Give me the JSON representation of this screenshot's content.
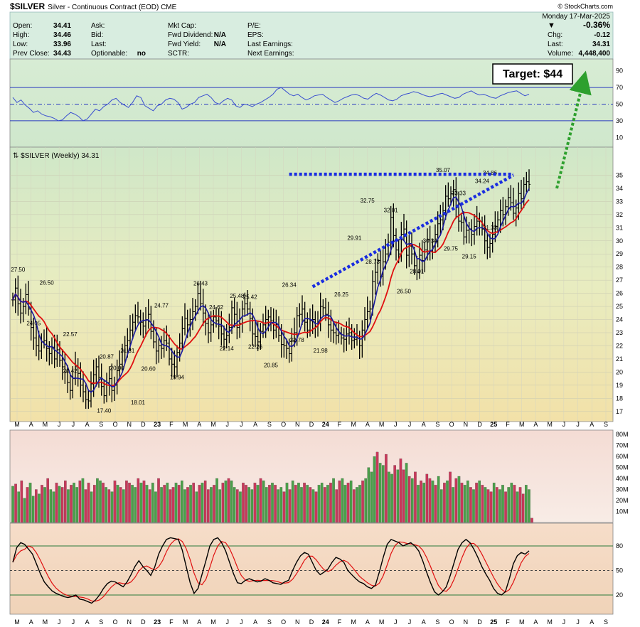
{
  "header": {
    "symbol": "$SILVER",
    "description": "Silver - Continuous Contract (EOD)  CME",
    "watermark": "© StockCharts.com",
    "date": "Monday  17-Mar-2025",
    "change_pct": "-0.36%",
    "change_arrow": "▼"
  },
  "quote": {
    "col1": [
      [
        "Open:",
        "34.41"
      ],
      [
        "High:",
        "34.46"
      ],
      [
        "Low:",
        "33.96"
      ],
      [
        "Prev Close:",
        "34.43"
      ]
    ],
    "col2": [
      [
        "Ask:",
        ""
      ],
      [
        "Bid:",
        ""
      ],
      [
        "Last:",
        ""
      ],
      [
        "Optionable:",
        "no"
      ]
    ],
    "col3": [
      [
        "Mkt Cap:",
        ""
      ],
      [
        "Fwd Dividend:",
        "N/A"
      ],
      [
        "Fwd Yield:",
        "N/A"
      ],
      [
        "SCTR:",
        ""
      ]
    ],
    "col4": [
      [
        "P/E:",
        ""
      ],
      [
        "EPS:",
        ""
      ],
      [
        "Last Earnings:",
        ""
      ],
      [
        "Next Earnings:",
        ""
      ]
    ],
    "col5": [
      [
        "Chg:",
        "-0.12"
      ],
      [
        "Last:",
        "34.31"
      ],
      [
        "Volume:",
        "4,448,400"
      ]
    ]
  },
  "price_legend": "⇅ $SILVER (Weekly) 34.31",
  "annotations": {
    "target": "Target: $44"
  },
  "colors": {
    "up_volume": "#4aa04a",
    "down_volume": "#c8385a",
    "price_bar": "#000000",
    "ma_fast": "#1a1aa0",
    "ma_slow": "#e01010",
    "trendline": "#1a2de0",
    "target_arrow": "#2ea02e",
    "rsi_line": "#3a4fd0",
    "stoch_k": "#000000",
    "stoch_d": "#e01010"
  },
  "chart_data": [
    {
      "type": "ohlc",
      "title": "$SILVER (Weekly) 34.31",
      "series_name": "$SILVER weekly",
      "x_months": [
        "M",
        "A",
        "M",
        "J",
        "J",
        "A",
        "S",
        "O",
        "N",
        "D",
        "23",
        "F",
        "M",
        "A",
        "M",
        "J",
        "J",
        "A",
        "S",
        "O",
        "N",
        "D",
        "24",
        "F",
        "M",
        "A",
        "M",
        "J",
        "J",
        "A",
        "S",
        "O",
        "N",
        "D",
        "25",
        "F",
        "M",
        "A",
        "M",
        "J",
        "J",
        "A",
        "S"
      ],
      "y_ticks": [
        17,
        18,
        19,
        20,
        21,
        22,
        23,
        24,
        25,
        26,
        27,
        28,
        29,
        30,
        31,
        32,
        33,
        34,
        35
      ],
      "ylim": [
        16.5,
        36.0
      ],
      "grid": true,
      "weekly_close": [
        25.5,
        26.4,
        25.2,
        24.5,
        25.0,
        25.9,
        24.8,
        23.4,
        22.6,
        22.0,
        21.6,
        22.3,
        22.4,
        21.8,
        21.4,
        21.9,
        21.0,
        21.7,
        20.9,
        20.4,
        20.0,
        19.2,
        18.6,
        19.5,
        20.4,
        19.9,
        19.0,
        18.5,
        17.9,
        17.8,
        19.1,
        19.8,
        20.4,
        19.6,
        18.9,
        18.2,
        19.2,
        19.5,
        18.6,
        19.0,
        20.1,
        20.6,
        21.6,
        22.0,
        22.4,
        23.2,
        23.8,
        24.3,
        24.2,
        23.8,
        23.5,
        24.0,
        24.4,
        23.1,
        22.3,
        21.6,
        22.0,
        21.8,
        22.4,
        22.2,
        21.0,
        20.6,
        20.4,
        21.5,
        22.2,
        23.3,
        24.1,
        23.6,
        24.0,
        24.6,
        25.0,
        26.0,
        25.2,
        24.5,
        23.7,
        23.0,
        23.6,
        24.2,
        23.9,
        23.5,
        22.9,
        22.5,
        22.8,
        23.4,
        24.9,
        24.4,
        23.4,
        23.7,
        24.8,
        25.2,
        24.8,
        24.1,
        22.9,
        22.7,
        22.3,
        23.1,
        23.6,
        24.0,
        24.2,
        23.9,
        23.2,
        23.6,
        22.8,
        22.1,
        22.0,
        21.8,
        21.4,
        22.4,
        23.0,
        24.3,
        24.4,
        24.8,
        23.8,
        23.2,
        23.9,
        24.0,
        23.5,
        23.8,
        25.0,
        24.9,
        24.4,
        23.6,
        23.2,
        23.0,
        22.8,
        22.9,
        22.6,
        22.5,
        22.9,
        23.0,
        22.4,
        22.5,
        22.6,
        22.0,
        23.2,
        24.0,
        24.6,
        24.8,
        26.9,
        27.6,
        28.5,
        27.3,
        28.4,
        29.0,
        29.9,
        31.8,
        30.4,
        29.3,
        29.0,
        30.5,
        30.9,
        28.9,
        29.6,
        29.0,
        28.1,
        27.6,
        28.9,
        28.5,
        29.3,
        30.1,
        29.2,
        29.6,
        30.5,
        31.3,
        31.6,
        32.3,
        33.4,
        33.2,
        33.6,
        33.9,
        32.6,
        31.5,
        31.4,
        30.3,
        30.8,
        30.9,
        30.5,
        31.1,
        31.5,
        31.0,
        30.9,
        30.0,
        29.5,
        29.8,
        30.5,
        31.1,
        31.6,
        32.3,
        32.0,
        32.6,
        33.3,
        32.9,
        32.1,
        32.5,
        33.6,
        33.2,
        34.3,
        34.5,
        34.3
      ],
      "labels": [
        {
          "text": "27.50"
        },
        {
          "text": "24.05"
        },
        {
          "text": "26.50"
        },
        {
          "text": "22.57"
        },
        {
          "text": "20.42"
        },
        {
          "text": "20.87"
        },
        {
          "text": "17.40"
        },
        {
          "text": "20.00"
        },
        {
          "text": "21.31"
        },
        {
          "text": "18.01"
        },
        {
          "text": "20.60"
        },
        {
          "text": "24.77"
        },
        {
          "text": "19.94"
        },
        {
          "text": "26.43"
        },
        {
          "text": "24.62"
        },
        {
          "text": "22.14"
        },
        {
          "text": "25.48"
        },
        {
          "text": "25.42"
        },
        {
          "text": "22.26"
        },
        {
          "text": "20.85"
        },
        {
          "text": "26.34"
        },
        {
          "text": "22.78"
        },
        {
          "text": "21.98"
        },
        {
          "text": "26.25"
        },
        {
          "text": "29.91"
        },
        {
          "text": "32.75"
        },
        {
          "text": "28.73"
        },
        {
          "text": "32.01"
        },
        {
          "text": "26.50"
        },
        {
          "text": "28.01"
        },
        {
          "text": "30.34"
        },
        {
          "text": "35.07"
        },
        {
          "text": "29.75"
        },
        {
          "text": "33.33"
        },
        {
          "text": "29.15"
        },
        {
          "text": "34.24"
        },
        {
          "text": "34.86"
        },
        {
          "text": "31.33"
        }
      ],
      "moving_averages": [
        {
          "name": "fast"
        },
        {
          "name": "slow"
        }
      ],
      "trendlines": [
        {
          "kind": "resistance",
          "from": {
            "week": 106,
            "price": 35.07
          },
          "to": {
            "week": 192,
            "price": 35.07
          }
        },
        {
          "kind": "support",
          "from": {
            "week": 115,
            "price": 26.5
          },
          "to": {
            "week": 192,
            "price": 35.0
          }
        }
      ],
      "target": 44
    },
    {
      "type": "line",
      "title": "RSI",
      "y_ticks": [
        10,
        30,
        50,
        70,
        90
      ],
      "ylim": [
        0,
        100
      ],
      "reference_lines": [
        30,
        50,
        70
      ],
      "values": [
        58,
        52,
        55,
        49,
        45,
        40,
        42,
        38,
        36,
        35,
        33,
        30,
        31,
        36,
        40,
        38,
        35,
        30,
        32,
        38,
        44,
        42,
        47,
        50,
        55,
        57,
        52,
        49,
        46,
        52,
        60,
        58,
        48,
        45,
        42,
        48,
        50,
        55,
        57,
        56,
        52,
        44,
        46,
        50,
        52,
        58,
        60,
        62,
        58,
        52,
        50,
        54,
        57,
        55,
        48,
        46,
        50,
        49,
        47,
        50,
        52,
        55,
        58,
        62,
        68,
        70,
        66,
        62,
        60,
        62,
        58,
        55,
        57,
        60,
        61,
        62,
        58,
        55,
        52,
        54,
        57,
        59,
        61,
        62,
        60,
        57,
        56,
        60,
        63,
        61,
        58,
        55,
        54,
        56,
        60,
        62,
        63,
        65,
        64,
        62,
        60,
        59,
        60,
        62,
        63,
        61,
        59,
        57,
        58,
        62,
        64,
        66,
        63,
        61,
        62,
        60,
        58,
        57,
        60,
        62,
        64,
        65,
        66,
        63,
        60,
        62
      ]
    },
    {
      "type": "bar",
      "title": "Volume",
      "y_ticks_labels": [
        "10M",
        "20M",
        "30M",
        "40M",
        "50M",
        "60M",
        "70M",
        "80M"
      ],
      "ylim": [
        0,
        82
      ],
      "values": [
        33,
        35,
        28,
        38,
        22,
        32,
        36,
        24,
        30,
        26,
        34,
        32,
        40,
        30,
        28,
        36,
        33,
        32,
        38,
        30,
        34,
        36,
        32,
        38,
        40,
        30,
        36,
        28,
        34,
        40,
        38,
        36,
        32,
        30,
        28,
        38,
        34,
        32,
        30,
        38,
        36,
        34,
        32,
        40,
        36,
        38,
        34,
        30,
        36,
        28,
        40,
        32,
        34,
        36,
        30,
        32,
        36,
        34,
        38,
        30,
        32,
        34,
        36,
        28,
        34,
        36,
        38,
        30,
        32,
        34,
        40,
        30,
        36,
        38,
        40,
        38,
        32,
        30,
        28,
        36,
        34,
        32,
        30,
        36,
        34,
        40,
        38,
        32,
        34,
        36,
        34,
        30,
        32,
        28,
        36,
        30,
        38,
        34,
        36,
        32,
        36,
        34,
        32,
        30,
        28,
        34,
        36,
        32,
        34,
        36,
        40,
        30,
        38,
        40,
        34,
        36,
        38,
        30,
        32,
        34,
        38,
        40,
        50,
        46,
        60,
        64,
        54,
        52,
        62,
        46,
        44,
        52,
        48,
        58,
        48,
        54,
        42,
        40,
        46,
        34,
        38,
        36,
        44,
        40,
        38,
        34,
        42,
        30,
        36,
        38,
        46,
        32,
        40,
        42,
        36,
        34,
        38,
        32,
        30,
        36,
        38,
        34,
        32,
        30,
        28,
        36,
        32,
        30,
        34,
        28,
        32,
        36,
        34,
        28,
        32,
        26,
        34,
        30,
        4
      ],
      "up": [
        1,
        0,
        1,
        0,
        1,
        0,
        1,
        1,
        0,
        1,
        0,
        1,
        0,
        1,
        1,
        0,
        1,
        0,
        0,
        1,
        0,
        1,
        1,
        0,
        1,
        0,
        0,
        1,
        0,
        1,
        1,
        0,
        1,
        0,
        1,
        0,
        1,
        0,
        1,
        0,
        0,
        1,
        1,
        0,
        1,
        0,
        1,
        0,
        1,
        1,
        0,
        1,
        0,
        1,
        0,
        0,
        1,
        0,
        1,
        1,
        0,
        1,
        0,
        1,
        0,
        1,
        0,
        0,
        1,
        0,
        1,
        1,
        0,
        1,
        0,
        1,
        1,
        0,
        1,
        0,
        0,
        1,
        1,
        0,
        1,
        0,
        1,
        1,
        0,
        1,
        0,
        1,
        1,
        0,
        1,
        0,
        1,
        0,
        1,
        1,
        0,
        1,
        0,
        1,
        0,
        1,
        1,
        0,
        1,
        0,
        1,
        0,
        0,
        1,
        1,
        0,
        1,
        0,
        1,
        1,
        0,
        1,
        1,
        1,
        1,
        0,
        1,
        1,
        0,
        1,
        1,
        0,
        1,
        0,
        0,
        1,
        0,
        1,
        0,
        1,
        0,
        1,
        0,
        0,
        1,
        0,
        1,
        1,
        0,
        1,
        0,
        1,
        0,
        1,
        0,
        1,
        1,
        0,
        1,
        0,
        1,
        0,
        1,
        0,
        0,
        1,
        0,
        1,
        1,
        0,
        1,
        1,
        0,
        1,
        0,
        0,
        1,
        1,
        0,
        1,
        0,
        1,
        0,
        0,
        1,
        0
      ]
    },
    {
      "type": "line",
      "title": "Stochastic",
      "y_ticks": [
        20,
        50,
        80
      ],
      "ylim": [
        0,
        100
      ],
      "reference_lines": [
        20,
        50,
        80
      ],
      "k": [
        60,
        78,
        84,
        82,
        76,
        70,
        58,
        46,
        36,
        30,
        25,
        22,
        20,
        18,
        17,
        18,
        20,
        15,
        14,
        12,
        10,
        14,
        20,
        28,
        34,
        37,
        36,
        33,
        30,
        36,
        45,
        55,
        62,
        55,
        50,
        44,
        54,
        70,
        80,
        88,
        90,
        89,
        88,
        75,
        55,
        35,
        22,
        28,
        45,
        62,
        80,
        88,
        90,
        84,
        74,
        60,
        46,
        35,
        34,
        38,
        40,
        38,
        36,
        37,
        40,
        38,
        35,
        34,
        33,
        36,
        38,
        50,
        60,
        68,
        72,
        70,
        60,
        50,
        45,
        48,
        52,
        60,
        66,
        64,
        60,
        50,
        45,
        40,
        36,
        34,
        30,
        28,
        32,
        48,
        66,
        82,
        88,
        86,
        84,
        80,
        82,
        84,
        80,
        74,
        62,
        48,
        35,
        24,
        20,
        24,
        30,
        44,
        60,
        76,
        84,
        88,
        84,
        76,
        66,
        55,
        46,
        38,
        28,
        22,
        20,
        24,
        40,
        58,
        68,
        72,
        70,
        74
      ]
    }
  ]
}
